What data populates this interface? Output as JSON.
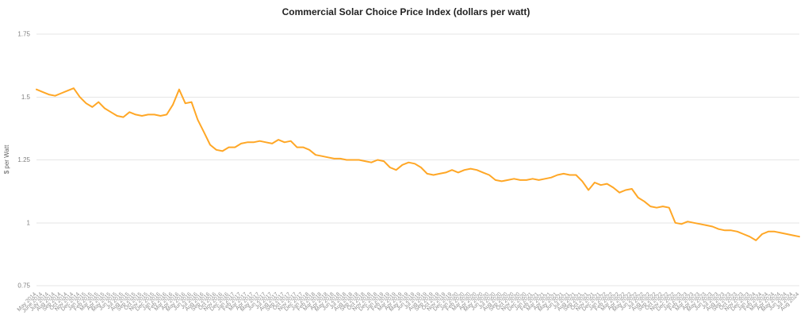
{
  "page": {
    "title": "Commercial Solar Choice Price Index (dollars per watt)"
  },
  "chart_data": {
    "type": "line",
    "title": "Commercial Solar Choice Price Index (dollars per watt)",
    "xlabel": "",
    "ylabel": "$ per Watt",
    "ylim": [
      0.75,
      1.75
    ],
    "yticks": [
      0.75,
      1,
      1.25,
      1.5,
      1.75
    ],
    "ytick_labels": [
      "0.75",
      "1",
      "1.25",
      "1.5",
      "1.75"
    ],
    "grid": true,
    "legend": "none",
    "colors": {
      "line": "#FFA726",
      "grid": "#E6E6E6",
      "tick_text": "#8C8C8C",
      "title_text": "#222222"
    },
    "x": [
      "May 2014",
      "June 2014",
      "July 2014",
      "Aug 2014",
      "Sep 2014",
      "Oct 2014",
      "Nov 2014",
      "Dec 2014",
      "Jan 2015",
      "Feb 2015",
      "Mar 2015",
      "Apr 2015",
      "May 2015",
      "Jun 2015",
      "Jul 2015",
      "Aug 2015",
      "Sep 2015",
      "Oct 2015",
      "Nov 2015",
      "Dec 2015",
      "Jan 2016",
      "Feb 2016",
      "Mar 2016",
      "Apr 2016",
      "May 2016",
      "Jun 2016",
      "Jul 2016",
      "Aug 2016",
      "Sep 2016",
      "Oct 2016",
      "Nov 2016",
      "Dec 2016",
      "Jan 2017",
      "Feb 2017",
      "Mar 2017",
      "Apr 2017",
      "May 2017",
      "Jun 2017",
      "Jul 2017",
      "Aug 2017",
      "Sep 2017",
      "Oct 2017",
      "Nov 2017",
      "Dec 2017",
      "Jan 2018",
      "Feb 2018",
      "Mar 2018",
      "Apr 2018",
      "May 2018",
      "Jun 2018",
      "Jul 2018",
      "Aug 2018",
      "Sep 2018",
      "Oct 2018",
      "Nov 2018",
      "Dec 2018",
      "Jan 2019",
      "Feb 2019",
      "Mar 2019",
      "Apr 2019",
      "May 2019",
      "Jun 2019",
      "Jul 2019",
      "Aug 2019",
      "Sep 2019",
      "Oct 2019",
      "Nov 2019",
      "Dec 2019",
      "Jan 2020",
      "Feb 2020",
      "Mar 2020",
      "Apr 2020",
      "May 2020",
      "Jun 2020",
      "Jul 2020",
      "Aug 2020",
      "Sep 2020",
      "Oct 2020",
      "Nov 2020",
      "Dec 2020",
      "Jan 2021",
      "Feb 2021",
      "Mar 2021",
      "Apr 2021",
      "May 2021",
      "Jun 2021",
      "Jul 2021",
      "Aug 2021",
      "Sep 2021",
      "Oct 2021",
      "Nov 2021",
      "Dec 2021",
      "Jan 2022",
      "Feb 2022",
      "Mar 2022",
      "Apr 2022",
      "May 2022",
      "Jun 2022",
      "Jul 2022",
      "Aug 2022",
      "Sep 2022",
      "Oct 2022",
      "Nov 2022",
      "Dec 2022",
      "Jan 2023",
      "Feb 2023",
      "Mar 2023",
      "Apr 2023",
      "May 2023",
      "Jun 2023",
      "Jul 2023",
      "Aug 2023",
      "Sep 2023",
      "Oct 2023",
      "Nov 2023",
      "Dec 2023",
      "Jan 2024",
      "Feb 2024",
      "Mar 2024",
      "Apr 2024",
      "May 2024",
      "Jun 2024",
      "Jul 2024",
      "Aug 2024"
    ],
    "values": [
      1.53,
      1.52,
      1.51,
      1.505,
      1.515,
      1.525,
      1.535,
      1.5,
      1.475,
      1.46,
      1.48,
      1.455,
      1.44,
      1.425,
      1.42,
      1.44,
      1.43,
      1.425,
      1.43,
      1.43,
      1.425,
      1.43,
      1.47,
      1.53,
      1.475,
      1.48,
      1.41,
      1.36,
      1.31,
      1.29,
      1.285,
      1.3,
      1.3,
      1.315,
      1.32,
      1.32,
      1.325,
      1.32,
      1.315,
      1.33,
      1.32,
      1.325,
      1.3,
      1.3,
      1.29,
      1.27,
      1.265,
      1.26,
      1.255,
      1.255,
      1.25,
      1.25,
      1.25,
      1.245,
      1.24,
      1.25,
      1.245,
      1.22,
      1.21,
      1.23,
      1.24,
      1.235,
      1.22,
      1.195,
      1.19,
      1.195,
      1.2,
      1.21,
      1.2,
      1.21,
      1.215,
      1.21,
      1.2,
      1.19,
      1.17,
      1.165,
      1.17,
      1.175,
      1.17,
      1.17,
      1.175,
      1.17,
      1.175,
      1.18,
      1.19,
      1.195,
      1.19,
      1.19,
      1.165,
      1.13,
      1.16,
      1.15,
      1.155,
      1.14,
      1.12,
      1.13,
      1.135,
      1.1,
      1.085,
      1.065,
      1.06,
      1.065,
      1.06,
      1.0,
      0.995,
      1.005,
      1.0,
      0.995,
      0.99,
      0.985,
      0.975,
      0.97,
      0.97,
      0.965,
      0.955,
      0.945,
      0.93,
      0.955,
      0.965,
      0.965,
      0.96,
      0.955,
      0.95,
      0.945
    ]
  }
}
